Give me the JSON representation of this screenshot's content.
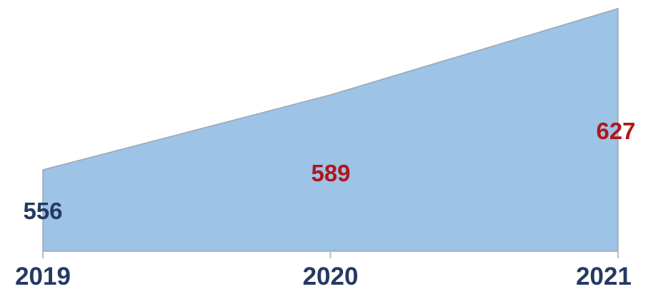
{
  "chart_data": {
    "type": "area",
    "categories": [
      "2019",
      "2020",
      "2021"
    ],
    "series": [
      {
        "values": [
          556,
          589,
          627
        ]
      }
    ],
    "data_labels": [
      "556",
      "589",
      "627"
    ],
    "data_label_colors": [
      "#243a63",
      "#b0161b",
      "#b0161b"
    ],
    "fill_color": "#9dc3e6",
    "title": "",
    "xlabel": "",
    "ylabel": "",
    "grid": false,
    "legend": "none"
  }
}
